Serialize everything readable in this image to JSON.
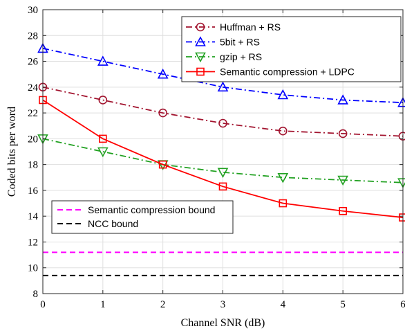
{
  "chart_data": {
    "type": "line",
    "xlabel": "Channel SNR (dB)",
    "ylabel": "Coded bits per word",
    "xlim": [
      0,
      6
    ],
    "ylim": [
      8,
      30
    ],
    "xticks": [
      0,
      1,
      2,
      3,
      4,
      5,
      6
    ],
    "yticks": [
      8,
      10,
      12,
      14,
      16,
      18,
      20,
      22,
      24,
      26,
      28,
      30
    ],
    "grid": true,
    "x": [
      0,
      1,
      2,
      3,
      4,
      5,
      6
    ],
    "series": [
      {
        "name": "Huffman + RS",
        "values": [
          24,
          23,
          22,
          21.2,
          20.6,
          20.4,
          20.2
        ],
        "color": "#a2142f",
        "dash": "dashdot",
        "marker": "circle"
      },
      {
        "name": "5bit + RS",
        "values": [
          27,
          26,
          25,
          24,
          23.4,
          23,
          22.8
        ],
        "color": "#0000ff",
        "dash": "dashdot",
        "marker": "triangle-up"
      },
      {
        "name": "gzip + RS",
        "values": [
          20,
          19,
          18,
          17.4,
          17,
          16.8,
          16.6
        ],
        "color": "#21a121",
        "dash": "dashdot",
        "marker": "triangle-down"
      },
      {
        "name": "Semantic compression + LDPC",
        "values": [
          23,
          20,
          18,
          16.3,
          15,
          14.4,
          13.9
        ],
        "color": "#ff0000",
        "dash": "solid",
        "marker": "square"
      }
    ],
    "reference_lines": [
      {
        "name": "Semantic compression bound",
        "y": 11.2,
        "color": "#ff00ff",
        "dash": "dashed"
      },
      {
        "name": "NCC bound",
        "y": 9.4,
        "color": "#000000",
        "dash": "dashed"
      }
    ],
    "legend": {
      "series_position": "top-right",
      "bounds_position": "middle-left"
    }
  }
}
